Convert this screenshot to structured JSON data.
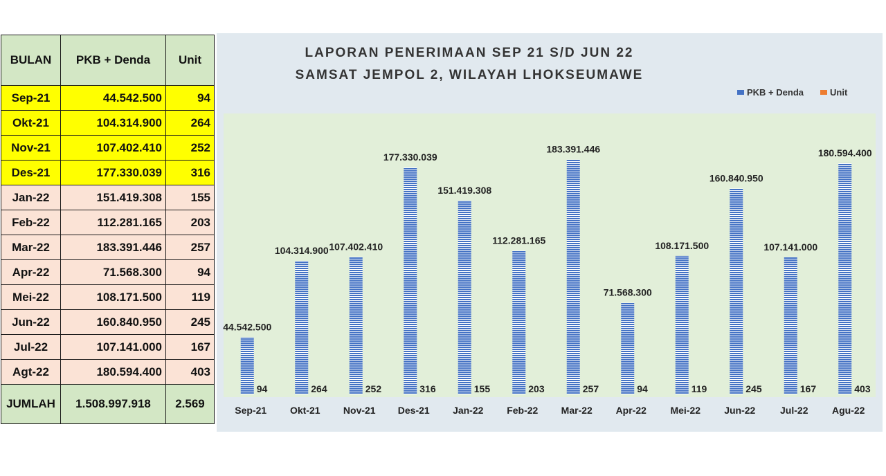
{
  "table": {
    "headers": [
      "BULAN",
      "PKB + Denda",
      "Unit"
    ],
    "rows": [
      {
        "bulan": "Sep-21",
        "pkb": "44.542.500",
        "unit": "94",
        "hl": "yellow"
      },
      {
        "bulan": "Okt-21",
        "pkb": "104.314.900",
        "unit": "264",
        "hl": "yellow"
      },
      {
        "bulan": "Nov-21",
        "pkb": "107.402.410",
        "unit": "252",
        "hl": "yellow"
      },
      {
        "bulan": "Des-21",
        "pkb": "177.330.039",
        "unit": "316",
        "hl": "yellow"
      },
      {
        "bulan": "Jan-22",
        "pkb": "151.419.308",
        "unit": "155",
        "hl": "pink"
      },
      {
        "bulan": "Feb-22",
        "pkb": "112.281.165",
        "unit": "203",
        "hl": "pink"
      },
      {
        "bulan": "Mar-22",
        "pkb": "183.391.446",
        "unit": "257",
        "hl": "pink"
      },
      {
        "bulan": "Apr-22",
        "pkb": "71.568.300",
        "unit": "94",
        "hl": "pink"
      },
      {
        "bulan": "Mei-22",
        "pkb": "108.171.500",
        "unit": "119",
        "hl": "pink"
      },
      {
        "bulan": "Jun-22",
        "pkb": "160.840.950",
        "unit": "245",
        "hl": "pink"
      },
      {
        "bulan": "Jul-22",
        "pkb": "107.141.000",
        "unit": "167",
        "hl": "pink"
      },
      {
        "bulan": "Agt-22",
        "pkb": "180.594.400",
        "unit": "403",
        "hl": "pink"
      }
    ],
    "total": {
      "label": "JUMLAH",
      "pkb": "1.508.997.918",
      "unit": "2.569"
    }
  },
  "chart_data": {
    "type": "bar",
    "title": "LAPORAN PENERIMAAN SEP 21 S/D JUN 22",
    "subtitle": "SAMSAT JEMPOL 2, WILAYAH LHOKSEUMAWE",
    "categories": [
      "Sep-21",
      "Okt-21",
      "Nov-21",
      "Des-21",
      "Jan-22",
      "Feb-22",
      "Mar-22",
      "Apr-22",
      "Mei-22",
      "Jun-22",
      "Jul-22",
      "Agu-22"
    ],
    "series": [
      {
        "name": "PKB + Denda",
        "values": [
          44542500,
          104314900,
          107402410,
          177330039,
          151419308,
          112281165,
          183391446,
          71568300,
          108171500,
          160840950,
          107141000,
          180594400
        ],
        "labels": [
          "44.542.500",
          "104.314.900",
          "107.402.410",
          "177.330.039",
          "151.419.308",
          "112.281.165",
          "183.391.446",
          "71.568.300",
          "108.171.500",
          "160.840.950",
          "107.141.000",
          "180.594.400"
        ]
      },
      {
        "name": "Unit",
        "values": [
          94,
          264,
          252,
          316,
          155,
          203,
          257,
          94,
          119,
          245,
          167,
          403
        ],
        "labels": [
          "94",
          "264",
          "252",
          "316",
          "155",
          "203",
          "257",
          "94",
          "119",
          "245",
          "167",
          "403"
        ]
      }
    ],
    "legend_position": "top-right",
    "grid": false,
    "plot_background": "#e2efd9",
    "chart_background": "#e1e9ef",
    "bar_color": "#4472c4",
    "unit_color": "#ed7d31"
  }
}
